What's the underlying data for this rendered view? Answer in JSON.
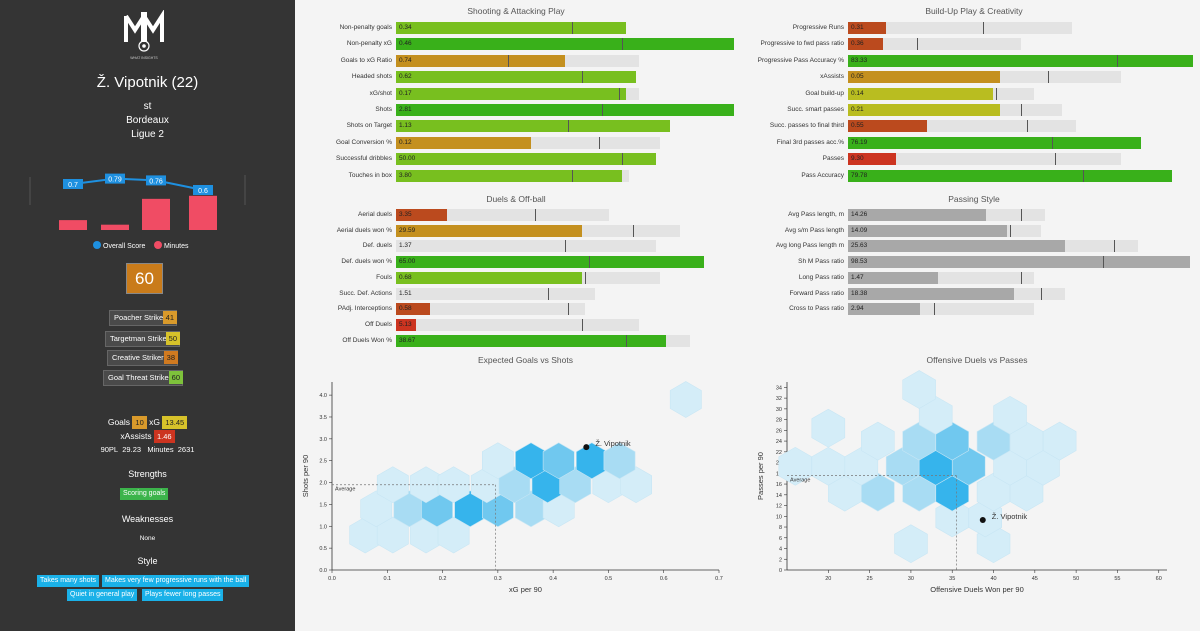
{
  "sidebar": {
    "logo_text": "WHAT INSIGHTS",
    "player_name": "Ž. Vipotnik (22)",
    "position": "st",
    "team": "Bordeaux",
    "league": "Ligue 2",
    "history": {
      "scores": [
        0.7,
        0.79,
        0.76,
        0.6
      ],
      "score_labels": [
        "0.7",
        "0.79",
        "0.76",
        "0.6"
      ],
      "minutes_share": [
        0.26,
        0.14,
        0.82,
        0.9
      ],
      "legend_score": "Overall Score",
      "legend_minutes": "Minutes",
      "score_color": "#1e90e0",
      "minutes_color": "#f04c64"
    },
    "overall": "60",
    "overall_color": "#c97b1a",
    "archetypes": [
      {
        "label": "Poacher Striker",
        "value": "41",
        "color": "#d99a2b"
      },
      {
        "label": "Targetman Striker",
        "value": "50",
        "color": "#d7c22a"
      },
      {
        "label": "Creative Striker",
        "value": "38",
        "color": "#d07a20"
      },
      {
        "label": "Goal Threat Striker",
        "value": "60",
        "color": "#7ec23b"
      }
    ],
    "goals_label": "Goals",
    "goals": "10",
    "xg_label": "xG",
    "xg": "13.45",
    "xassists_label": "xAssists",
    "xassists": "1.46",
    "pl90_label": "90PL",
    "pl90": "29.23",
    "minutes_label": "Minutes",
    "minutes": "2631",
    "strengths_title": "Strengths",
    "strengths": [
      "Scoring goals"
    ],
    "weaknesses_title": "Weaknesses",
    "weaknesses_none": "None",
    "style_title": "Style",
    "style_tags": [
      "Takes many shots",
      "Makes very few progressive runs with the ball",
      "Quiet in general play",
      "Plays fewer long passes"
    ]
  },
  "panels": [
    {
      "title": "Shooting & Attacking Play",
      "rows": [
        {
          "label": "Non-penalty goals",
          "value": "0.34",
          "pct": 0.68,
          "avg": 0.61,
          "mark": 0.52,
          "color": "#78bf1f"
        },
        {
          "label": "Non-penalty xG",
          "value": "0.46",
          "pct": 1.0,
          "avg": 0.62,
          "mark": 0.67,
          "color": "#39b01a"
        },
        {
          "label": "Goals to xG Ratio",
          "value": "0.74",
          "pct": 0.5,
          "avg": 0.72,
          "mark": 0.33,
          "color": "#c4901f"
        },
        {
          "label": "Headed shots",
          "value": "0.62",
          "pct": 0.71,
          "avg": 0.66,
          "mark": 0.55,
          "color": "#78bf1f"
        },
        {
          "label": "xG/shot",
          "value": "0.17",
          "pct": 0.68,
          "avg": 0.72,
          "mark": 0.66,
          "color": "#78bf1f"
        },
        {
          "label": "Shots",
          "value": "2.81",
          "pct": 1.0,
          "avg": 0.64,
          "mark": 0.61,
          "color": "#39b01a"
        },
        {
          "label": "Shots on Target",
          "value": "1.13",
          "pct": 0.81,
          "avg": 0.62,
          "mark": 0.51,
          "color": "#78bf1f"
        },
        {
          "label": "Goal Conversion %",
          "value": "0.12",
          "pct": 0.4,
          "avg": 0.78,
          "mark": 0.6,
          "color": "#c4901f"
        },
        {
          "label": "Successful dribbles",
          "value": "50.00",
          "pct": 0.77,
          "avg": 0.77,
          "mark": 0.67,
          "color": "#78bf1f"
        },
        {
          "label": "Touches in box",
          "value": "3.80",
          "pct": 0.67,
          "avg": 0.69,
          "mark": 0.52,
          "color": "#78bf1f"
        }
      ]
    },
    {
      "title": "Build-Up Play & Creativity",
      "rows": [
        {
          "label": "Progressive Runs",
          "value": "0.31",
          "pct": 0.11,
          "avg": 0.65,
          "mark": 0.39,
          "color": "#bb4a1e"
        },
        {
          "label": "Progressive to fwd pass ratio",
          "value": "0.36",
          "pct": 0.1,
          "avg": 0.5,
          "mark": 0.2,
          "color": "#bb4a1e"
        },
        {
          "label": "Progressive Pass Accuracy %",
          "value": "83.33",
          "pct": 1.0,
          "avg": 0.68,
          "mark": 0.78,
          "color": "#39b01a"
        },
        {
          "label": "xAssists",
          "value": "0.05",
          "pct": 0.44,
          "avg": 0.79,
          "mark": 0.58,
          "color": "#c4901f"
        },
        {
          "label": "Goal build-up",
          "value": "0.14",
          "pct": 0.42,
          "avg": 0.54,
          "mark": 0.43,
          "color": "#b9bd20"
        },
        {
          "label": "Succ. smart passes",
          "value": "0.21",
          "pct": 0.44,
          "avg": 0.62,
          "mark": 0.5,
          "color": "#b9bd20"
        },
        {
          "label": "Succ. passes to final third",
          "value": "0.55",
          "pct": 0.23,
          "avg": 0.66,
          "mark": 0.52,
          "color": "#bb4a1e"
        },
        {
          "label": "Final 3rd passes acc.%",
          "value": "76.19",
          "pct": 0.85,
          "avg": 0.7,
          "mark": 0.59,
          "color": "#39b01a"
        },
        {
          "label": "Passes",
          "value": "9.30",
          "pct": 0.14,
          "avg": 0.79,
          "mark": 0.6,
          "color": "#cc3420"
        },
        {
          "label": "Pass Accuracy",
          "value": "79.78",
          "pct": 0.94,
          "avg": 0.79,
          "mark": 0.68,
          "color": "#39b01a"
        }
      ]
    },
    {
      "title": "Duels & Off-ball",
      "rows": [
        {
          "label": "Aerial duels",
          "value": "3.35",
          "pct": 0.15,
          "avg": 0.63,
          "mark": 0.41,
          "color": "#bb4a1e"
        },
        {
          "label": "Aerial duels won %",
          "value": "29.59",
          "pct": 0.55,
          "avg": 0.84,
          "mark": 0.7,
          "color": "#c4901f"
        },
        {
          "label": "Def. duels",
          "value": "1.37",
          "pct": 0.0,
          "avg": 0.77,
          "mark": 0.5,
          "color": "#cc3420"
        },
        {
          "label": "Def. duels won %",
          "value": "65.00",
          "pct": 0.91,
          "avg": 0.82,
          "mark": 0.57,
          "color": "#39b01a"
        },
        {
          "label": "Fouls",
          "value": "0.68",
          "pct": 0.55,
          "avg": 0.78,
          "mark": 0.56,
          "color": "#78bf1f"
        },
        {
          "label": "Succ. Def. Actions",
          "value": "1.51",
          "pct": 0.0,
          "avg": 0.59,
          "mark": 0.45,
          "color": "#cc3420"
        },
        {
          "label": "PAdj. Interceptions",
          "value": "0.58",
          "pct": 0.1,
          "avg": 0.56,
          "mark": 0.51,
          "color": "#bb4a1e"
        },
        {
          "label": "Off Duels",
          "value": "5.13",
          "pct": 0.06,
          "avg": 0.72,
          "mark": 0.55,
          "color": "#cc3420"
        },
        {
          "label": "Off Duels Won %",
          "value": "38.67",
          "pct": 0.8,
          "avg": 0.87,
          "mark": 0.68,
          "color": "#39b01a"
        }
      ]
    },
    {
      "title": "Passing Style",
      "rows": [
        {
          "label": "Avg Pass length, m",
          "value": "14.26",
          "pct": 0.4,
          "avg": 0.57,
          "mark": 0.5,
          "color": "#a8a8a8"
        },
        {
          "label": "Avg s/m Pass length",
          "value": "14.09",
          "pct": 0.46,
          "avg": 0.56,
          "mark": 0.47,
          "color": "#a8a8a8"
        },
        {
          "label": "Avg long Pass length m",
          "value": "25.63",
          "pct": 0.63,
          "avg": 0.84,
          "mark": 0.77,
          "color": "#a8a8a8"
        },
        {
          "label": "Sh M Pass ratio",
          "value": "98.53",
          "pct": 0.99,
          "avg": 0.88,
          "mark": 0.74,
          "color": "#a8a8a8"
        },
        {
          "label": "Long Pass ratio",
          "value": "1.47",
          "pct": 0.26,
          "avg": 0.54,
          "mark": 0.5,
          "color": "#a8a8a8"
        },
        {
          "label": "Forward Pass ratio",
          "value": "18.38",
          "pct": 0.48,
          "avg": 0.63,
          "mark": 0.56,
          "color": "#a8a8a8"
        },
        {
          "label": "Cross to Pass ratio",
          "value": "2.94",
          "pct": 0.21,
          "avg": 0.54,
          "mark": 0.25,
          "color": "#a8a8a8"
        }
      ]
    }
  ],
  "scatter": [
    {
      "chart_data": {
        "type": "hexbin",
        "title": "Expected Goals vs Shots",
        "xlabel": "xG per 90",
        "ylabel": "Shots per 90",
        "xlim": [
          0,
          0.7
        ],
        "ylim": [
          0,
          4.3
        ],
        "xticks": [
          "0.0",
          "0.1",
          "0.2",
          "0.3",
          "0.4",
          "0.5",
          "0.6",
          "0.7"
        ],
        "xtick_values": [
          0,
          0.1,
          0.2,
          0.3,
          0.4,
          0.5,
          0.6,
          0.7
        ],
        "yticks": [
          "0.0",
          "0.5",
          "1.0",
          "1.5",
          "2.0",
          "2.5",
          "3.0",
          "3.5",
          "4.0"
        ],
        "ytick_values": [
          0,
          0.5,
          1.0,
          1.5,
          2.0,
          2.5,
          3.0,
          3.5,
          4.0
        ],
        "average_label": "Average",
        "average": [
          0.296,
          1.95
        ],
        "player": {
          "label": "Ž. Vipotnik",
          "x": 0.46,
          "y": 2.81
        },
        "hexes": [
          [
            0.06,
            0.8,
            1
          ],
          [
            0.11,
            0.8,
            1
          ],
          [
            0.17,
            0.8,
            1
          ],
          [
            0.22,
            0.8,
            1
          ],
          [
            0.08,
            1.4,
            1
          ],
          [
            0.14,
            1.4,
            2
          ],
          [
            0.19,
            1.4,
            3
          ],
          [
            0.25,
            1.4,
            4
          ],
          [
            0.3,
            1.4,
            3
          ],
          [
            0.36,
            1.4,
            2
          ],
          [
            0.41,
            1.4,
            1
          ],
          [
            0.11,
            1.95,
            1
          ],
          [
            0.17,
            1.95,
            1
          ],
          [
            0.22,
            1.95,
            1
          ],
          [
            0.28,
            1.95,
            1
          ],
          [
            0.33,
            1.95,
            2
          ],
          [
            0.39,
            1.95,
            4
          ],
          [
            0.44,
            1.95,
            2
          ],
          [
            0.5,
            1.95,
            1
          ],
          [
            0.55,
            1.95,
            1
          ],
          [
            0.3,
            2.5,
            1
          ],
          [
            0.36,
            2.5,
            4
          ],
          [
            0.41,
            2.5,
            3
          ],
          [
            0.47,
            2.5,
            4
          ],
          [
            0.52,
            2.5,
            2
          ],
          [
            0.64,
            3.9,
            1
          ]
        ],
        "hex_colors": [
          "#d4edf8",
          "#a8dcf3",
          "#70c8ef",
          "#36b4ec"
        ]
      }
    },
    {
      "chart_data": {
        "type": "hexbin",
        "title": "Offensive Duels vs Passes",
        "xlabel": "Offensive Duels Won per 90",
        "ylabel": "Passes per 90",
        "xlim": [
          15,
          61
        ],
        "ylim": [
          0,
          35
        ],
        "xticks": [
          "20",
          "25",
          "30",
          "35",
          "40",
          "45",
          "50",
          "55",
          "60"
        ],
        "xtick_values": [
          20,
          25,
          30,
          35,
          40,
          45,
          50,
          55,
          60
        ],
        "yticks": [
          "0",
          "2",
          "4",
          "6",
          "8",
          "10",
          "12",
          "14",
          "16",
          "18",
          "20",
          "22",
          "24",
          "26",
          "28",
          "30",
          "32",
          "34"
        ],
        "ytick_values": [
          0,
          2,
          4,
          6,
          8,
          10,
          12,
          14,
          16,
          18,
          20,
          22,
          24,
          26,
          28,
          30,
          32,
          34
        ],
        "average_label": "Average",
        "average": [
          35.5,
          17.6
        ],
        "player": {
          "label": "Ž. Vipotnik",
          "x": 38.7,
          "y": 9.3
        },
        "hexes": [
          [
            30,
            4.9,
            1
          ],
          [
            40,
            4.9,
            1
          ],
          [
            35,
            9.7,
            1
          ],
          [
            39,
            9.7,
            1
          ],
          [
            22,
            14.5,
            1
          ],
          [
            26,
            14.5,
            2
          ],
          [
            31,
            14.5,
            2
          ],
          [
            35,
            14.5,
            4
          ],
          [
            40,
            14.5,
            1
          ],
          [
            44,
            14.5,
            1
          ],
          [
            16,
            19.3,
            1
          ],
          [
            20,
            19.3,
            1
          ],
          [
            24,
            19.3,
            1
          ],
          [
            29,
            19.3,
            2
          ],
          [
            33,
            19.3,
            4
          ],
          [
            37,
            19.3,
            3
          ],
          [
            42,
            19.3,
            1
          ],
          [
            46,
            19.3,
            1
          ],
          [
            26,
            24,
            1
          ],
          [
            31,
            24,
            2
          ],
          [
            35,
            24,
            3
          ],
          [
            40,
            24,
            2
          ],
          [
            44,
            24,
            1
          ],
          [
            48,
            24,
            1
          ],
          [
            33,
            28.8,
            1
          ],
          [
            42,
            28.8,
            1
          ],
          [
            20,
            26.4,
            1
          ],
          [
            31,
            33.6,
            1
          ]
        ],
        "hex_colors": [
          "#d4edf8",
          "#a8dcf3",
          "#70c8ef",
          "#36b4ec"
        ]
      }
    }
  ]
}
